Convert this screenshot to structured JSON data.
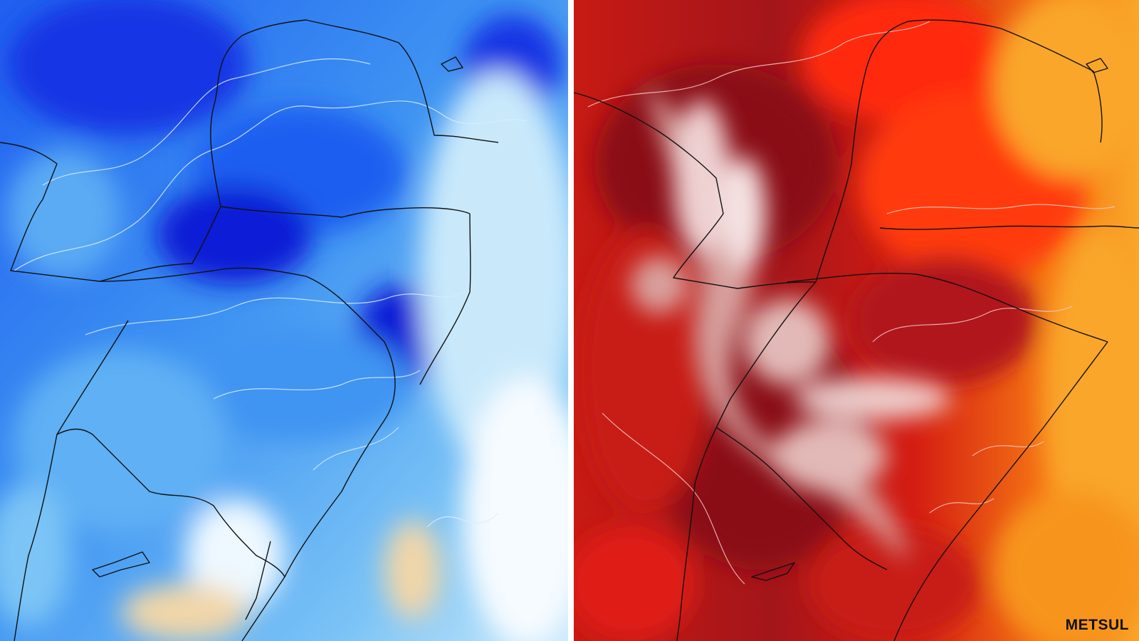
{
  "maps": [
    {
      "id": "cold-anomaly-map",
      "palette": "blue",
      "colors": {
        "deep": "#0a1fd6",
        "strong": "#1f5ff0",
        "mid": "#3f94f2",
        "light": "#7cc4f6",
        "pale": "#c9e9fb",
        "white": "#f6fbff",
        "warm": "#f1d6a8",
        "contour": "#d8ecff",
        "border": "#111111"
      }
    },
    {
      "id": "warm-anomaly-map",
      "palette": "red",
      "colors": {
        "deep": "#8a0f12",
        "strong": "#b0141a",
        "mid": "#e01e12",
        "bright": "#ff3a10",
        "orange": "#f77a14",
        "amber": "#f9a62a",
        "pale": "#e7c3c0",
        "white": "#fbeeee",
        "contour": "#f4c9c2",
        "border": "#111111"
      }
    }
  ],
  "watermark": "METSUL"
}
